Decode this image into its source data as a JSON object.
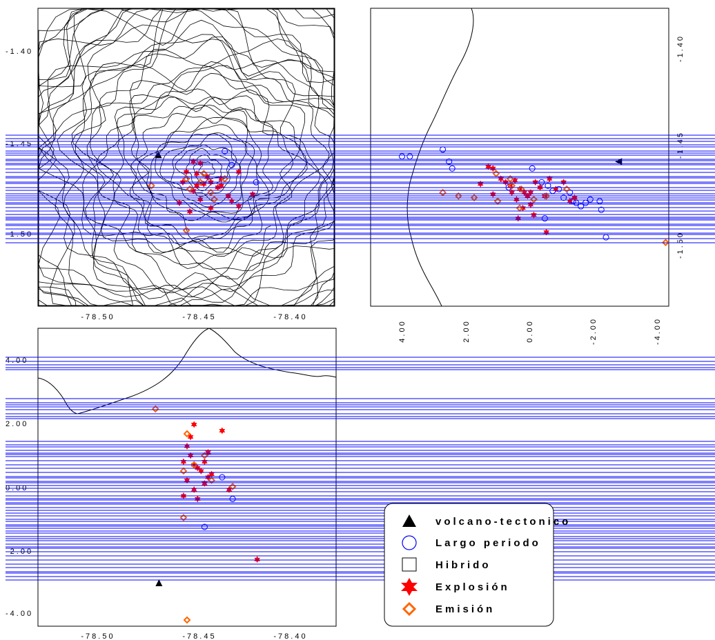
{
  "colors": {
    "contour": "#000000",
    "bands": "#0000ff",
    "volcano_tectonic": "#000000",
    "long_period": "#0000ff",
    "hybrid": "#000000",
    "explosion": "#ff0000",
    "emission": "#ff6600"
  },
  "legend": {
    "items": [
      {
        "label": "volcano-tectonico",
        "marker": "triangle-icon"
      },
      {
        "label": "Largo periodo",
        "marker": "circle-icon"
      },
      {
        "label": "Hibrido",
        "marker": "square-icon"
      },
      {
        "label": "Explosión",
        "marker": "star-icon"
      },
      {
        "label": "Emisión",
        "marker": "diamond-icon"
      }
    ]
  },
  "chart_data": [
    {
      "type": "scatter",
      "panel": "map-view",
      "x_ticks": [
        "-78.50",
        "-78.45",
        "-78.40"
      ],
      "y_ticks": [
        "-1.40",
        "-1.45",
        "-1.50"
      ],
      "xlim": [
        -78.535,
        -78.365
      ],
      "ylim": [
        -1.54,
        -1.367
      ],
      "grid": false,
      "series": [
        {
          "name": "volcano-tectonico",
          "x": [
            -78.466
          ],
          "y": [
            -1.452
          ]
        },
        {
          "name": "Explosión",
          "x": [
            -78.446,
            -78.442,
            -78.444,
            -78.45,
            -78.438,
            -78.43,
            -78.436,
            -78.44,
            -78.432,
            -78.446,
            -78.42,
            -78.43,
            -78.452,
            -78.426,
            -78.454,
            -78.442,
            -78.424,
            -78.412,
            -78.436,
            -78.42,
            -78.448,
            -78.444
          ],
          "y": [
            -1.456,
            -1.457,
            -1.463,
            -1.462,
            -1.465,
            -1.466,
            -1.468,
            -1.469,
            -1.471,
            -1.473,
            -1.462,
            -1.47,
            -1.468,
            -1.476,
            -1.48,
            -1.478,
            -1.479,
            -1.475,
            -1.483,
            -1.482,
            -1.485,
            -1.47
          ]
        },
        {
          "name": "Emisión",
          "x": [
            -78.442,
            -78.448,
            -78.436,
            -78.428,
            -78.45,
            -78.47,
            -78.434,
            -78.44,
            -78.45
          ],
          "y": [
            -1.468,
            -1.472,
            -1.474,
            -1.466,
            -1.466,
            -1.47,
            -1.478,
            -1.463,
            -1.496
          ]
        },
        {
          "name": "Largo periodo",
          "x": [
            -78.424,
            -78.428,
            -78.41
          ],
          "y": [
            -1.458,
            -1.45,
            -1.468
          ]
        }
      ]
    },
    {
      "type": "scatter",
      "panel": "ew-cross-section",
      "x_ticks": [
        "4.00",
        "2.00",
        "0.00",
        "-2.00",
        "-4.00"
      ],
      "y_ticks": [
        "-1.40",
        "-1.45",
        "-1.50"
      ],
      "xlim": [
        5.0,
        -4.5
      ],
      "ylim": [
        -1.54,
        -1.367
      ],
      "grid": false,
      "series": [
        {
          "name": "volcano-tectonico",
          "x": [
            -2.9
          ],
          "y": [
            -1.456
          ]
        },
        {
          "name": "Largo periodo",
          "x": [
            4.0,
            3.75,
            2.7,
            2.5,
            2.4,
            -0.15,
            -0.45,
            -0.65,
            -0.8,
            -1.0,
            -1.15,
            -1.35,
            -1.45,
            -1.55,
            -1.7,
            -1.85,
            -2.0,
            -2.3,
            -2.5,
            -0.55,
            -2.35,
            0.6
          ],
          "y": [
            -1.453,
            -1.453,
            -1.449,
            -1.456,
            -1.46,
            -1.46,
            -1.468,
            -1.47,
            -1.473,
            -1.472,
            -1.477,
            -1.474,
            -1.479,
            -1.48,
            -1.482,
            -1.48,
            -1.478,
            -1.479,
            -1.5,
            -1.489,
            -1.484,
            -1.471
          ]
        },
        {
          "name": "Explosión",
          "x": [
            1.25,
            1.1,
            0.85,
            0.7,
            0.55,
            0.4,
            0.25,
            0.1,
            0.0,
            -0.1,
            -0.25,
            -0.4,
            -0.55,
            -0.7,
            -0.9,
            -1.15,
            -1.35,
            0.35,
            0.15,
            -0.2,
            1.5,
            1.1,
            0.3,
            -0.6,
            -1.5,
            0.5,
            -0.1
          ],
          "y": [
            -1.459,
            -1.46,
            -1.466,
            -1.468,
            -1.47,
            -1.467,
            -1.472,
            -1.474,
            -1.476,
            -1.474,
            -1.468,
            -1.471,
            -1.476,
            -1.466,
            -1.472,
            -1.468,
            -1.479,
            -1.478,
            -1.483,
            -1.487,
            -1.469,
            -1.475,
            -1.489,
            -1.497,
            -1.477,
            -1.474,
            -1.481
          ]
        },
        {
          "name": "Emisión",
          "x": [
            2.7,
            2.2,
            1.7,
            1.0,
            0.55,
            0.2,
            -0.2,
            -0.6,
            -1.25,
            0.5,
            0.95,
            0.25,
            -4.4
          ],
          "y": [
            -1.474,
            -1.476,
            -1.477,
            -1.463,
            -1.466,
            -1.472,
            -1.478,
            -1.476,
            -1.472,
            -1.47,
            -1.479,
            -1.483,
            -1.503
          ]
        }
      ]
    },
    {
      "type": "scatter",
      "panel": "ns-cross-section",
      "x_ticks": [
        "-78.50",
        "-78.45",
        "-78.40"
      ],
      "y_ticks": [
        "4.00",
        "2.00",
        "0.00",
        "-2.00",
        "-4.00"
      ],
      "xlim": [
        -78.535,
        -78.365
      ],
      "ylim": [
        -4.4,
        5.2
      ],
      "grid": false,
      "series": [
        {
          "name": "volcano-tectonico",
          "x": [
            -78.466
          ],
          "y": [
            -3.0
          ]
        },
        {
          "name": "Explosión",
          "x": [
            -78.452,
            -78.448,
            -78.446,
            -78.444,
            -78.442,
            -78.44,
            -78.438,
            -78.45,
            -78.446,
            -78.444,
            -78.44,
            -78.436,
            -78.448,
            -78.45,
            -78.446,
            -78.43,
            -78.426,
            -78.41,
            -78.438,
            -78.452
          ],
          "y": [
            0.9,
            1.1,
            0.8,
            0.7,
            0.6,
            0.9,
            0.4,
            0.3,
            0.0,
            -0.3,
            0.2,
            0.5,
            1.7,
            1.4,
            2.1,
            1.9,
            0.0,
            -2.25,
            1.2,
            -0.2
          ],
          "note_marks": "red star"
        },
        {
          "name": "Emisión",
          "x": [
            -78.468,
            -78.45,
            -78.44,
            -78.446,
            -78.452,
            -78.424,
            -78.436,
            -78.452,
            -78.45
          ],
          "y": [
            2.6,
            1.8,
            1.1,
            0.8,
            0.6,
            0.1,
            0.3,
            -0.9,
            -4.2
          ]
        },
        {
          "name": "Largo periodo",
          "x": [
            -78.424,
            -78.43,
            -78.44
          ],
          "y": [
            -0.3,
            0.4,
            -1.2
          ]
        }
      ]
    }
  ]
}
